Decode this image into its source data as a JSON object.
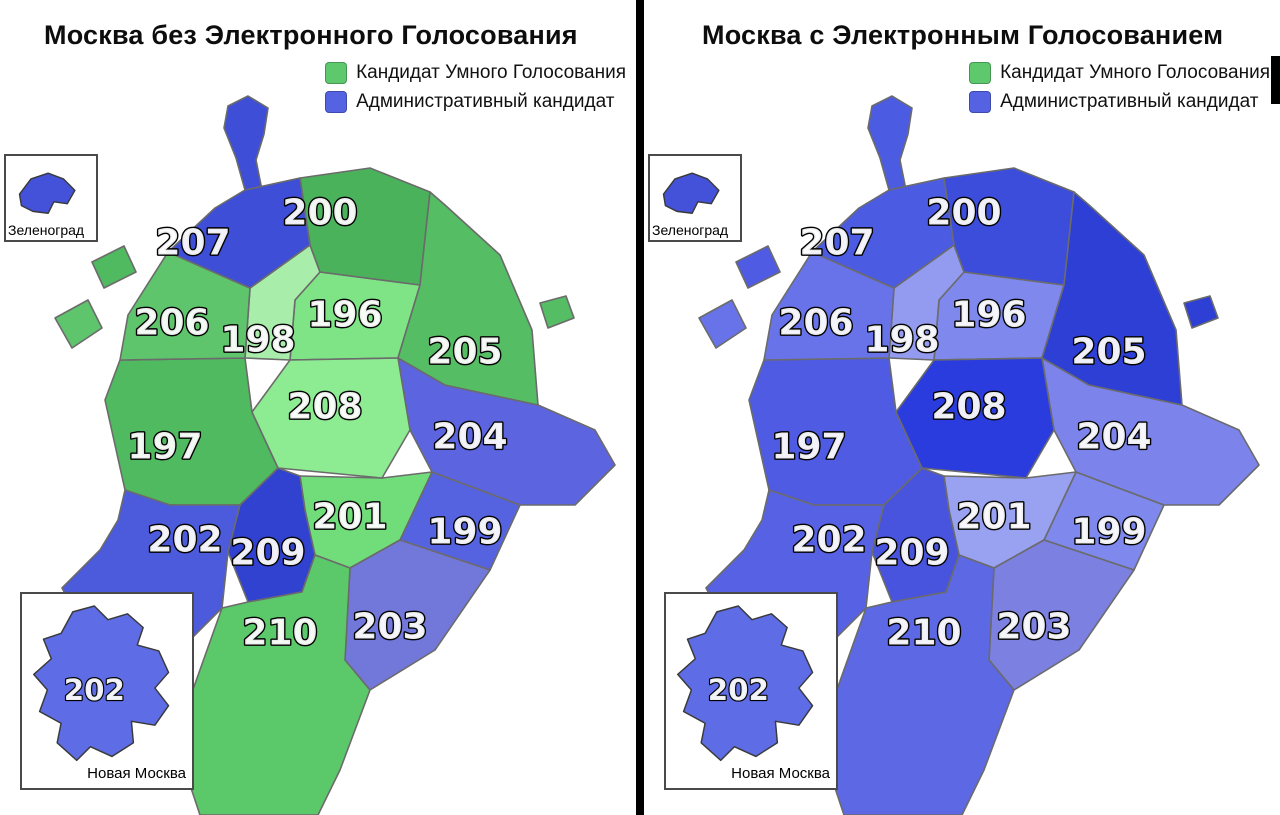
{
  "page": {
    "background": "#ffffff",
    "divider_color": "#000000"
  },
  "district_ids": [
    "196",
    "197",
    "198",
    "199",
    "200",
    "201",
    "202",
    "203",
    "204",
    "205",
    "206",
    "207",
    "208",
    "209",
    "210"
  ],
  "panels": [
    {
      "title": "Москва без Электронного Голосования",
      "legend": [
        {
          "label": "Кандидат Умного Голосования",
          "color": "#5dc86c"
        },
        {
          "label": "Административный кандидат",
          "color": "#5563e3"
        }
      ],
      "insets": {
        "zelenograd": {
          "label": "Зеленоград",
          "fill": "#4352d9"
        },
        "novaya_moskva": {
          "label": "Новая Москва",
          "district_number": "202",
          "fill": "#5e6ce5"
        }
      },
      "district_colors": {
        "196": "#7fe486",
        "197": "#50ba60",
        "198": "#a8eda9",
        "199": "#5663e1",
        "200": "#4bb25c",
        "201": "#71dd7a",
        "202": "#4c5adc",
        "203": "#7277da",
        "204": "#5c64e0",
        "205": "#55bd63",
        "206": "#5ec56c",
        "207": "#3e4ed7",
        "208": "#8deb92",
        "209": "#3242d0",
        "210": "#5bc96a"
      }
    },
    {
      "title": "Москва с Электронным Голосованием",
      "legend": [
        {
          "label": "Кандидат Умного Голосования",
          "color": "#5dc86c"
        },
        {
          "label": "Административный кандидат",
          "color": "#5563e3"
        }
      ],
      "insets": {
        "zelenograd": {
          "label": "Зеленоград",
          "fill": "#4352d9"
        },
        "novaya_moskva": {
          "label": "Новая Москва",
          "district_number": "202",
          "fill": "#5e6ce5"
        }
      },
      "district_colors": {
        "196": "#7f88ed",
        "197": "#4f5be2",
        "198": "#939bf0",
        "199": "#7f88ed",
        "200": "#3c4cdb",
        "201": "#99a1f1",
        "202": "#5662e3",
        "203": "#7c80e1",
        "204": "#7c84ec",
        "205": "#2d3fd5",
        "206": "#6873e9",
        "207": "#4c5ce2",
        "208": "#2b3cdf",
        "209": "#4854de",
        "210": "#5c68e4"
      }
    }
  ]
}
